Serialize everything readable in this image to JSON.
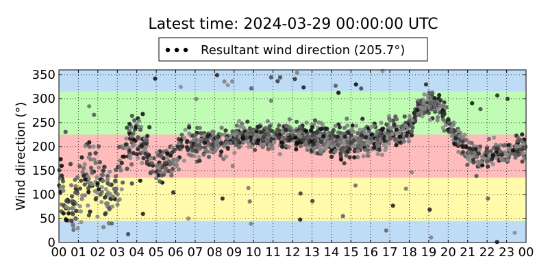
{
  "chart_data": {
    "type": "scatter",
    "title": "Latest time: 2024-03-29 00:00:00 UTC",
    "ylabel": "Wind direction (°)",
    "xlabel": "",
    "xlim": [
      0,
      24
    ],
    "ylim": [
      0,
      360
    ],
    "x_ticks": [
      0,
      1,
      2,
      3,
      4,
      5,
      6,
      7,
      8,
      9,
      10,
      11,
      12,
      13,
      14,
      15,
      16,
      17,
      18,
      19,
      20,
      21,
      22,
      23,
      24
    ],
    "x_tick_labels": [
      "00",
      "01",
      "02",
      "03",
      "04",
      "05",
      "06",
      "07",
      "08",
      "09",
      "10",
      "11",
      "12",
      "13",
      "14",
      "15",
      "16",
      "17",
      "18",
      "19",
      "20",
      "21",
      "22",
      "23",
      "00"
    ],
    "y_ticks": [
      0,
      50,
      100,
      150,
      200,
      250,
      300,
      350
    ],
    "grid": true,
    "legend": {
      "placement": "top-center",
      "entries": [
        "Resultant wind direction (205.7°)"
      ]
    },
    "background_bands": [
      {
        "from": 0,
        "to": 45,
        "color": "#bfdcf7"
      },
      {
        "from": 45,
        "to": 135,
        "color": "#fffbab"
      },
      {
        "from": 135,
        "to": 225,
        "color": "#ffbcbc"
      },
      {
        "from": 225,
        "to": 315,
        "color": "#c0fcb4"
      },
      {
        "from": 315,
        "to": 360,
        "color": "#bfdcf7"
      }
    ],
    "series": [
      {
        "name": "Resultant wind direction (205.7°)",
        "color_dark": "#000000",
        "color_light": "#a8a8a8",
        "profile_hours": [
          0,
          0.5,
          1,
          1.5,
          2,
          2.5,
          3,
          3.5,
          4,
          4.5,
          5,
          5.5,
          6,
          6.5,
          7,
          7.5,
          8,
          8.5,
          9,
          9.5,
          10,
          10.5,
          11,
          11.5,
          12,
          12.5,
          13,
          13.5,
          14,
          14.5,
          15,
          15.5,
          16,
          16.5,
          17,
          17.5,
          18,
          18.5,
          19,
          19.5,
          20,
          20.5,
          21,
          21.5,
          22,
          22.5,
          23,
          23.5,
          24
        ],
        "profile_center": [
          100,
          80,
          100,
          150,
          120,
          90,
          120,
          200,
          225,
          185,
          155,
          165,
          185,
          215,
          205,
          215,
          210,
          210,
          220,
          225,
          225,
          225,
          220,
          220,
          220,
          225,
          215,
          220,
          210,
          210,
          210,
          215,
          215,
          220,
          230,
          230,
          235,
          285,
          290,
          290,
          250,
          215,
          195,
          175,
          175,
          185,
          185,
          195,
          200
        ],
        "profile_spread": [
          70,
          70,
          70,
          80,
          80,
          70,
          70,
          60,
          55,
          40,
          40,
          45,
          45,
          40,
          40,
          40,
          35,
          35,
          30,
          30,
          30,
          30,
          30,
          30,
          30,
          30,
          35,
          35,
          35,
          40,
          40,
          40,
          40,
          40,
          35,
          30,
          30,
          25,
          25,
          30,
          35,
          30,
          30,
          25,
          25,
          25,
          25,
          30,
          30
        ],
        "points_per_hour": [
          60,
          60,
          55,
          55,
          55,
          50,
          55,
          70,
          70,
          80,
          85,
          90,
          90,
          90,
          90,
          85,
          85,
          80,
          80,
          75,
          70,
          60,
          55,
          55
        ]
      }
    ]
  }
}
